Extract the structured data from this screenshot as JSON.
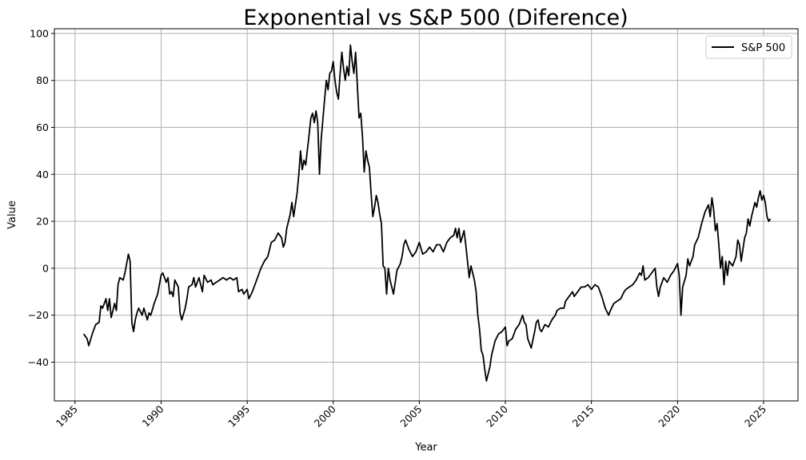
{
  "chart_data": {
    "type": "line",
    "title": "Exponential vs S&P 500 (Diference)",
    "xlabel": "Year",
    "ylabel": "Value",
    "xlim": [
      1983.8,
      2027.0
    ],
    "ylim": [
      -56.5,
      102
    ],
    "xticks": [
      1985,
      1990,
      1995,
      2000,
      2005,
      2010,
      2015,
      2020,
      2025
    ],
    "yticks": [
      -40,
      -20,
      0,
      20,
      40,
      60,
      80,
      100
    ],
    "grid": true,
    "legend_position": "top-right",
    "series": [
      {
        "name": "S&P 500",
        "color": "#000000",
        "points": [
          [
            1985.5,
            -28
          ],
          [
            1985.7,
            -30
          ],
          [
            1985.8,
            -33
          ],
          [
            1986.0,
            -28
          ],
          [
            1986.2,
            -24
          ],
          [
            1986.4,
            -23
          ],
          [
            1986.5,
            -16
          ],
          [
            1986.6,
            -17
          ],
          [
            1986.8,
            -13
          ],
          [
            1986.9,
            -18
          ],
          [
            1987.0,
            -13
          ],
          [
            1987.1,
            -21
          ],
          [
            1987.3,
            -15
          ],
          [
            1987.4,
            -18
          ],
          [
            1987.5,
            -7
          ],
          [
            1987.6,
            -4
          ],
          [
            1987.8,
            -5
          ],
          [
            1987.9,
            -2
          ],
          [
            1988.0,
            2
          ],
          [
            1988.1,
            6
          ],
          [
            1988.2,
            3
          ],
          [
            1988.3,
            -23
          ],
          [
            1988.4,
            -27
          ],
          [
            1988.5,
            -22
          ],
          [
            1988.6,
            -19
          ],
          [
            1988.7,
            -17
          ],
          [
            1988.9,
            -20
          ],
          [
            1989.0,
            -17
          ],
          [
            1989.2,
            -22
          ],
          [
            1989.3,
            -19
          ],
          [
            1989.4,
            -20
          ],
          [
            1989.6,
            -15
          ],
          [
            1989.7,
            -13
          ],
          [
            1989.8,
            -11
          ],
          [
            1990.0,
            -3
          ],
          [
            1990.1,
            -2
          ],
          [
            1990.3,
            -6
          ],
          [
            1990.4,
            -4
          ],
          [
            1990.5,
            -11
          ],
          [
            1990.6,
            -10
          ],
          [
            1990.7,
            -12
          ],
          [
            1990.8,
            -5
          ],
          [
            1991.0,
            -8
          ],
          [
            1991.1,
            -19
          ],
          [
            1991.2,
            -22
          ],
          [
            1991.4,
            -17
          ],
          [
            1991.5,
            -13
          ],
          [
            1991.6,
            -8
          ],
          [
            1991.8,
            -7
          ],
          [
            1991.9,
            -4
          ],
          [
            1992.0,
            -8
          ],
          [
            1992.2,
            -4
          ],
          [
            1992.4,
            -10
          ],
          [
            1992.5,
            -3
          ],
          [
            1992.7,
            -6
          ],
          [
            1992.9,
            -5
          ],
          [
            1993.0,
            -7
          ],
          [
            1993.2,
            -6
          ],
          [
            1993.4,
            -5
          ],
          [
            1993.6,
            -4
          ],
          [
            1993.8,
            -5
          ],
          [
            1994.0,
            -4
          ],
          [
            1994.2,
            -5
          ],
          [
            1994.4,
            -4
          ],
          [
            1994.5,
            -10
          ],
          [
            1994.7,
            -9
          ],
          [
            1994.8,
            -11
          ],
          [
            1995.0,
            -9
          ],
          [
            1995.1,
            -13
          ],
          [
            1995.3,
            -10
          ],
          [
            1995.5,
            -6
          ],
          [
            1995.8,
            0
          ],
          [
            1996.0,
            3
          ],
          [
            1996.2,
            5
          ],
          [
            1996.4,
            11
          ],
          [
            1996.6,
            12
          ],
          [
            1996.8,
            15
          ],
          [
            1997.0,
            13
          ],
          [
            1997.1,
            9
          ],
          [
            1997.2,
            11
          ],
          [
            1997.3,
            17
          ],
          [
            1997.5,
            23
          ],
          [
            1997.6,
            28
          ],
          [
            1997.7,
            22
          ],
          [
            1997.9,
            32
          ],
          [
            1998.0,
            40
          ],
          [
            1998.1,
            50
          ],
          [
            1998.2,
            42
          ],
          [
            1998.3,
            46
          ],
          [
            1998.4,
            44
          ],
          [
            1998.6,
            57
          ],
          [
            1998.7,
            64
          ],
          [
            1998.8,
            66
          ],
          [
            1998.9,
            62
          ],
          [
            1999.0,
            67
          ],
          [
            1999.1,
            62
          ],
          [
            1999.2,
            40
          ],
          [
            1999.3,
            55
          ],
          [
            1999.5,
            72
          ],
          [
            1999.6,
            80
          ],
          [
            1999.7,
            76
          ],
          [
            1999.8,
            83
          ],
          [
            1999.9,
            84
          ],
          [
            2000.0,
            88
          ],
          [
            2000.1,
            80
          ],
          [
            2000.2,
            75
          ],
          [
            2000.3,
            72
          ],
          [
            2000.4,
            83
          ],
          [
            2000.5,
            92
          ],
          [
            2000.6,
            85
          ],
          [
            2000.7,
            80
          ],
          [
            2000.8,
            86
          ],
          [
            2000.9,
            82
          ],
          [
            2001.0,
            95
          ],
          [
            2001.1,
            88
          ],
          [
            2001.2,
            83
          ],
          [
            2001.3,
            92
          ],
          [
            2001.4,
            78
          ],
          [
            2001.5,
            64
          ],
          [
            2001.6,
            66
          ],
          [
            2001.7,
            56
          ],
          [
            2001.8,
            41
          ],
          [
            2001.9,
            50
          ],
          [
            2002.0,
            46
          ],
          [
            2002.1,
            43
          ],
          [
            2002.2,
            32
          ],
          [
            2002.3,
            22
          ],
          [
            2002.4,
            26
          ],
          [
            2002.5,
            31
          ],
          [
            2002.6,
            28
          ],
          [
            2002.7,
            23
          ],
          [
            2002.8,
            19
          ],
          [
            2002.9,
            1
          ],
          [
            2003.0,
            0
          ],
          [
            2003.1,
            -11
          ],
          [
            2003.2,
            0
          ],
          [
            2003.3,
            -5
          ],
          [
            2003.5,
            -11
          ],
          [
            2003.7,
            -1
          ],
          [
            2003.9,
            2
          ],
          [
            2004.0,
            5
          ],
          [
            2004.1,
            10
          ],
          [
            2004.2,
            12
          ],
          [
            2004.4,
            8
          ],
          [
            2004.6,
            5
          ],
          [
            2004.8,
            7
          ],
          [
            2005.0,
            11
          ],
          [
            2005.2,
            6
          ],
          [
            2005.4,
            7
          ],
          [
            2005.6,
            9
          ],
          [
            2005.8,
            7
          ],
          [
            2006.0,
            10
          ],
          [
            2006.2,
            10
          ],
          [
            2006.4,
            7
          ],
          [
            2006.6,
            11
          ],
          [
            2006.8,
            13
          ],
          [
            2007.0,
            14
          ],
          [
            2007.1,
            17
          ],
          [
            2007.2,
            13
          ],
          [
            2007.3,
            17
          ],
          [
            2007.4,
            11
          ],
          [
            2007.6,
            16
          ],
          [
            2007.7,
            10
          ],
          [
            2007.8,
            3
          ],
          [
            2007.9,
            -4
          ],
          [
            2008.0,
            1
          ],
          [
            2008.1,
            -2
          ],
          [
            2008.2,
            -5
          ],
          [
            2008.3,
            -10
          ],
          [
            2008.4,
            -20
          ],
          [
            2008.5,
            -26
          ],
          [
            2008.6,
            -35
          ],
          [
            2008.7,
            -37
          ],
          [
            2008.8,
            -43
          ],
          [
            2008.9,
            -48
          ],
          [
            2009.0,
            -45
          ],
          [
            2009.1,
            -42
          ],
          [
            2009.2,
            -37
          ],
          [
            2009.4,
            -31
          ],
          [
            2009.6,
            -28
          ],
          [
            2009.8,
            -27
          ],
          [
            2010.0,
            -25
          ],
          [
            2010.1,
            -33
          ],
          [
            2010.2,
            -31
          ],
          [
            2010.4,
            -30
          ],
          [
            2010.6,
            -26
          ],
          [
            2010.8,
            -24
          ],
          [
            2011.0,
            -20
          ],
          [
            2011.1,
            -23
          ],
          [
            2011.2,
            -24
          ],
          [
            2011.3,
            -30
          ],
          [
            2011.5,
            -34
          ],
          [
            2011.7,
            -27
          ],
          [
            2011.8,
            -23
          ],
          [
            2011.9,
            -22
          ],
          [
            2012.0,
            -26
          ],
          [
            2012.1,
            -27
          ],
          [
            2012.3,
            -24
          ],
          [
            2012.5,
            -25
          ],
          [
            2012.7,
            -22
          ],
          [
            2012.9,
            -20
          ],
          [
            2013.0,
            -18
          ],
          [
            2013.2,
            -17
          ],
          [
            2013.4,
            -17
          ],
          [
            2013.5,
            -14
          ],
          [
            2013.7,
            -12
          ],
          [
            2013.9,
            -10
          ],
          [
            2014.0,
            -12
          ],
          [
            2014.2,
            -10
          ],
          [
            2014.4,
            -8
          ],
          [
            2014.6,
            -8
          ],
          [
            2014.8,
            -7
          ],
          [
            2015.0,
            -9
          ],
          [
            2015.2,
            -7
          ],
          [
            2015.4,
            -8
          ],
          [
            2015.6,
            -12
          ],
          [
            2015.8,
            -17
          ],
          [
            2016.0,
            -20
          ],
          [
            2016.1,
            -18
          ],
          [
            2016.3,
            -15
          ],
          [
            2016.5,
            -14
          ],
          [
            2016.7,
            -13
          ],
          [
            2016.9,
            -10
          ],
          [
            2017.0,
            -9
          ],
          [
            2017.2,
            -8
          ],
          [
            2017.4,
            -7
          ],
          [
            2017.6,
            -5
          ],
          [
            2017.8,
            -2
          ],
          [
            2017.9,
            -3
          ],
          [
            2018.0,
            1
          ],
          [
            2018.1,
            -5
          ],
          [
            2018.3,
            -4
          ],
          [
            2018.5,
            -2
          ],
          [
            2018.7,
            0
          ],
          [
            2018.8,
            -8
          ],
          [
            2018.9,
            -12
          ],
          [
            2019.0,
            -8
          ],
          [
            2019.2,
            -4
          ],
          [
            2019.4,
            -6
          ],
          [
            2019.6,
            -3
          ],
          [
            2019.8,
            -1
          ],
          [
            2020.0,
            2
          ],
          [
            2020.1,
            -3
          ],
          [
            2020.2,
            -20
          ],
          [
            2020.3,
            -8
          ],
          [
            2020.5,
            -3
          ],
          [
            2020.6,
            4
          ],
          [
            2020.7,
            1
          ],
          [
            2020.9,
            5
          ],
          [
            2021.0,
            10
          ],
          [
            2021.2,
            13
          ],
          [
            2021.4,
            19
          ],
          [
            2021.6,
            24
          ],
          [
            2021.8,
            27
          ],
          [
            2021.9,
            22
          ],
          [
            2022.0,
            30
          ],
          [
            2022.1,
            25
          ],
          [
            2022.2,
            16
          ],
          [
            2022.3,
            19
          ],
          [
            2022.4,
            10
          ],
          [
            2022.5,
            0
          ],
          [
            2022.6,
            5
          ],
          [
            2022.7,
            -7
          ],
          [
            2022.8,
            3
          ],
          [
            2022.9,
            -3
          ],
          [
            2023.0,
            3
          ],
          [
            2023.2,
            1
          ],
          [
            2023.4,
            5
          ],
          [
            2023.5,
            12
          ],
          [
            2023.6,
            10
          ],
          [
            2023.7,
            3
          ],
          [
            2023.8,
            8
          ],
          [
            2023.9,
            13
          ],
          [
            2024.0,
            15
          ],
          [
            2024.1,
            21
          ],
          [
            2024.2,
            18
          ],
          [
            2024.3,
            22
          ],
          [
            2024.4,
            25
          ],
          [
            2024.5,
            28
          ],
          [
            2024.6,
            26
          ],
          [
            2024.7,
            30
          ],
          [
            2024.8,
            33
          ],
          [
            2024.9,
            29
          ],
          [
            2025.0,
            31
          ],
          [
            2025.1,
            28
          ],
          [
            2025.2,
            22
          ],
          [
            2025.3,
            20
          ],
          [
            2025.4,
            21
          ]
        ]
      }
    ]
  }
}
